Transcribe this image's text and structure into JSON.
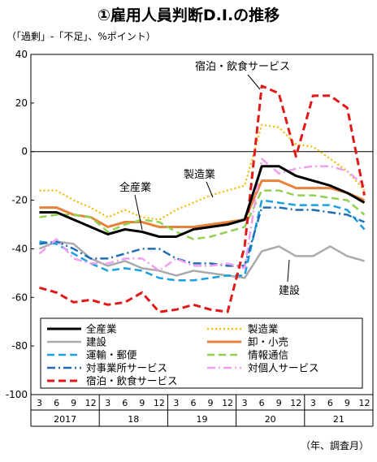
{
  "title": "①雇用人員判断D.I.の推移",
  "unit_label": "（「過剰」-「不足」、%ポイント）",
  "period_note": "（年、調査月）",
  "colors": {
    "all_industries": "#000000",
    "manufacturing": "#f5b800",
    "construction": "#aaaaaa",
    "wholesale_retail": "#e8823a",
    "transport_postal": "#1a9fe0",
    "info_comm": "#92d050",
    "business_services": "#1f6db0",
    "personal_services": "#f09ff0",
    "accommodation_food": "#e01818"
  },
  "chart_data": {
    "type": "line",
    "title": "①雇用人員判断D.I.の推移",
    "ylabel": "（「過剰」-「不足」、%ポイント）",
    "xlabel": "（年、調査月）",
    "ylim": [
      -100,
      40
    ],
    "yticks": [
      40,
      20,
      0,
      -20,
      -40,
      -60,
      -80,
      -100
    ],
    "month_ticks": [
      "3",
      "6",
      "9",
      "12",
      "3",
      "6",
      "9",
      "12",
      "3",
      "6",
      "9",
      "12",
      "3",
      "6",
      "9",
      "12",
      "3",
      "6",
      "9",
      "12"
    ],
    "year_labels": [
      "2017",
      "18",
      "19",
      "20",
      "21"
    ],
    "grid": false,
    "legend_position": "bottom",
    "series": [
      {
        "name": "全産業",
        "key": "all_industries",
        "style": "solid",
        "width": 3,
        "values": [
          -25,
          -25,
          -28,
          -31,
          -34,
          -32,
          -33,
          -35,
          -35,
          -32,
          -31,
          -30,
          -28,
          -6,
          -6,
          -10,
          -12,
          -14,
          -17,
          -21
        ]
      },
      {
        "name": "製造業",
        "key": "manufacturing",
        "style": "dotted",
        "width": 2.2,
        "values": [
          -16,
          -16,
          -20,
          -23,
          -27,
          -24,
          -27,
          -28,
          -24,
          -21,
          -18,
          -16,
          -14,
          11,
          10,
          3,
          2,
          -3,
          -8,
          -16
        ]
      },
      {
        "name": "建設",
        "key": "construction",
        "style": "solid",
        "width": 2.5,
        "values": [
          -40,
          -37,
          -38,
          -44,
          -47,
          -45,
          -48,
          -49,
          -51,
          -49,
          -50,
          -51,
          -52,
          -41,
          -39,
          -43,
          -43,
          -39,
          -43,
          -45
        ]
      },
      {
        "name": "卸・小売",
        "key": "wholesale_retail",
        "style": "solid",
        "width": 3,
        "values": [
          -23,
          -23,
          -26,
          -27,
          -31,
          -29,
          -29,
          -31,
          -31,
          -31,
          -30,
          -29,
          -28,
          -12,
          -12,
          -15,
          -15,
          -15,
          -17,
          -20
        ]
      },
      {
        "name": "運輸・郵便",
        "key": "transport_postal",
        "style": "dashed",
        "width": 2.5,
        "values": [
          -37,
          -38,
          -42,
          -46,
          -49,
          -48,
          -49,
          -52,
          -53,
          -53,
          -52,
          -51,
          -51,
          -20,
          -21,
          -22,
          -22,
          -22,
          -24,
          -32
        ]
      },
      {
        "name": "情報通信",
        "key": "info_comm",
        "style": "dashed",
        "width": 2.5,
        "values": [
          -27,
          -26,
          -26,
          -27,
          -33,
          -30,
          -28,
          -29,
          -33,
          -36,
          -35,
          -33,
          -31,
          -16,
          -16,
          -18,
          -18,
          -19,
          -20,
          -26
        ]
      },
      {
        "name": "対事業所サービス",
        "key": "business_services",
        "style": "dashdot",
        "width": 2.5,
        "values": [
          -38,
          -37,
          -40,
          -44,
          -44,
          -42,
          -40,
          -40,
          -44,
          -46,
          -46,
          -47,
          -47,
          -23,
          -23,
          -24,
          -24,
          -25,
          -26,
          -29
        ]
      },
      {
        "name": "対個人サービス",
        "key": "personal_services",
        "style": "dashdot",
        "width": 2.5,
        "values": [
          -42,
          -36,
          -44,
          -46,
          -46,
          -44,
          -44,
          -49,
          -44,
          -47,
          -47,
          -46,
          -48,
          -3,
          -9,
          -7,
          -6,
          -6,
          -8,
          -14
        ]
      },
      {
        "name": "宿泊・飲食サービス",
        "key": "accommodation_food",
        "style": "dashed",
        "width": 3,
        "values": [
          -56,
          -58,
          -62,
          -61,
          -63,
          -62,
          -58,
          -66,
          -65,
          -63,
          -65,
          -66,
          -39,
          27,
          24,
          -2,
          23,
          23,
          18,
          -18
        ]
      }
    ],
    "annotations": [
      {
        "text": "宿泊・飲食サービス",
        "series": "accommodation_food"
      },
      {
        "text": "製造業",
        "series": "manufacturing"
      },
      {
        "text": "全産業",
        "series": "all_industries"
      },
      {
        "text": "建設",
        "series": "construction"
      }
    ]
  }
}
